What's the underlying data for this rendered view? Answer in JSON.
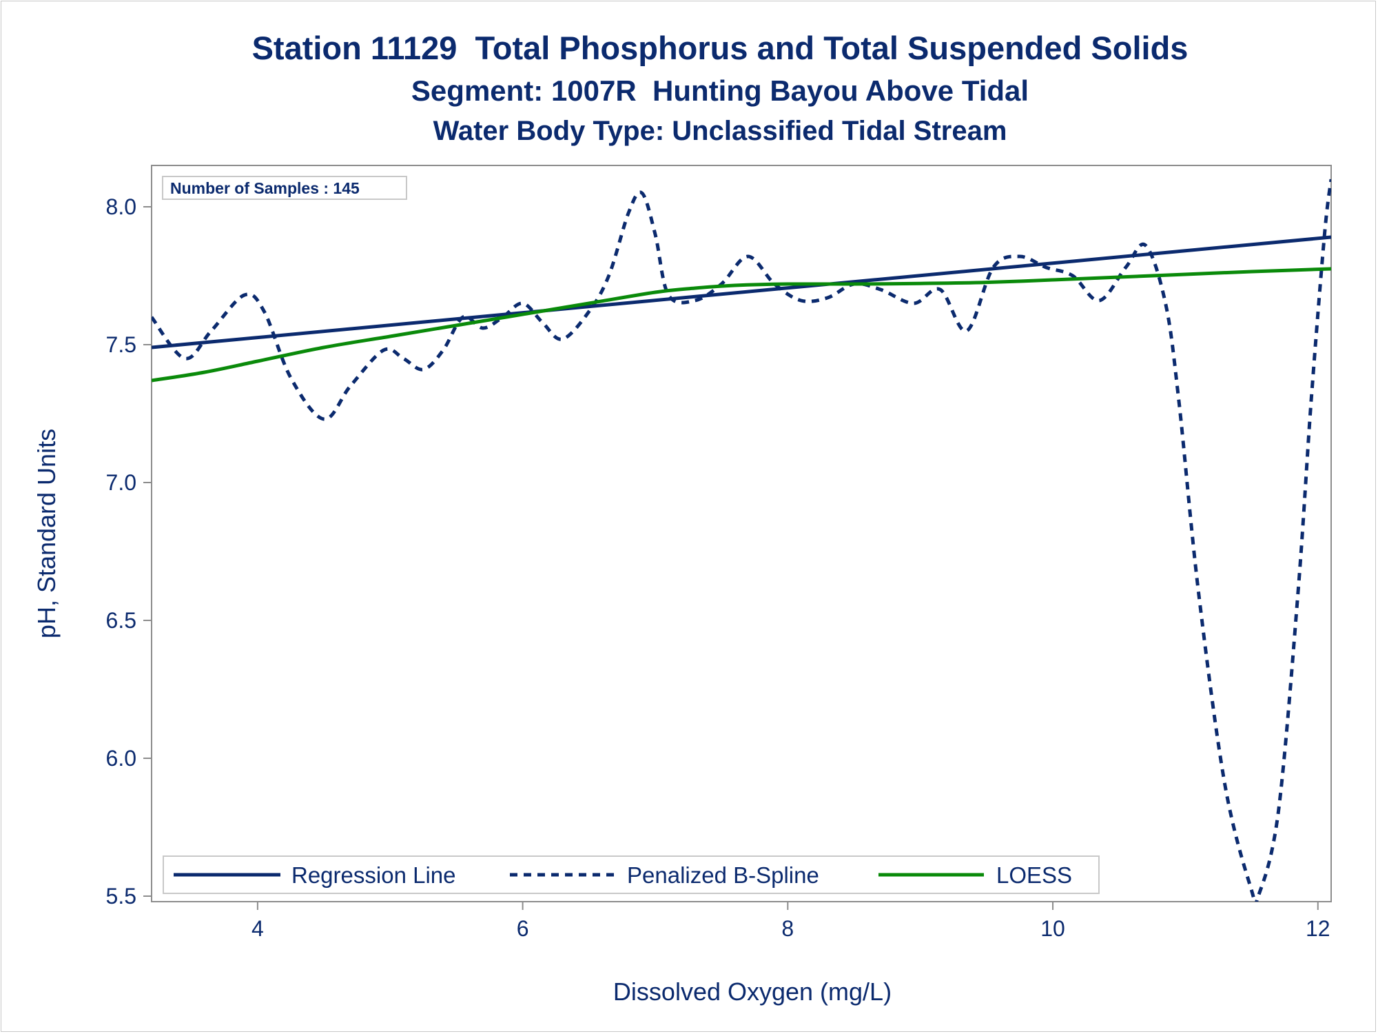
{
  "chart_data": {
    "type": "line",
    "title": "Station 11129  Total Phosphorus and Total Suspended Solids",
    "subtitle": "Segment: 1007R  Hunting Bayou Above Tidal",
    "subtitle2": "Water Body Type: Unclassified Tidal Stream",
    "xlabel": "Dissolved Oxygen (mg/L)",
    "ylabel": "pH, Standard Units",
    "xlim": [
      3.2,
      12.1
    ],
    "ylim": [
      5.48,
      8.15
    ],
    "x_ticks": [
      "4",
      "6",
      "8",
      "10",
      "12"
    ],
    "y_ticks": [
      "5.5",
      "6.0",
      "6.5",
      "7.0",
      "7.5",
      "8.0"
    ],
    "grid": false,
    "legend_position": "bottom-left-inside",
    "inset_label": "Number of Samples : 145",
    "series": [
      {
        "name": "Regression Line",
        "style": "solid",
        "color": "#0b2a6e",
        "x": [
          3.2,
          12.1
        ],
        "y": [
          7.49,
          7.89
        ]
      },
      {
        "name": "Penalized B-Spline",
        "style": "dashed",
        "color": "#0b2a6e",
        "x": [
          3.2,
          3.45,
          3.65,
          3.9,
          4.05,
          4.25,
          4.5,
          4.7,
          4.95,
          5.1,
          5.25,
          5.4,
          5.55,
          5.7,
          5.85,
          6.0,
          6.15,
          6.3,
          6.5,
          6.65,
          6.8,
          6.9,
          7.0,
          7.1,
          7.3,
          7.5,
          7.7,
          7.9,
          8.1,
          8.3,
          8.5,
          8.7,
          8.95,
          9.15,
          9.35,
          9.55,
          9.75,
          9.95,
          10.15,
          10.35,
          10.55,
          10.7,
          10.85,
          10.95,
          11.1,
          11.3,
          11.5,
          11.55,
          11.7,
          11.85,
          11.95,
          12.05,
          12.1
        ],
        "y": [
          7.6,
          7.45,
          7.55,
          7.68,
          7.62,
          7.38,
          7.23,
          7.35,
          7.48,
          7.45,
          7.41,
          7.48,
          7.6,
          7.56,
          7.6,
          7.65,
          7.58,
          7.52,
          7.62,
          7.75,
          7.98,
          8.05,
          7.9,
          7.68,
          7.66,
          7.72,
          7.82,
          7.72,
          7.66,
          7.67,
          7.72,
          7.7,
          7.65,
          7.7,
          7.55,
          7.78,
          7.82,
          7.78,
          7.75,
          7.66,
          7.78,
          7.86,
          7.65,
          7.3,
          6.6,
          5.9,
          5.52,
          5.5,
          5.8,
          6.6,
          7.3,
          7.9,
          8.1
        ]
      },
      {
        "name": "LOESS",
        "style": "solid",
        "color": "#0a8a0a",
        "x": [
          3.2,
          3.6,
          4.0,
          4.5,
          5.0,
          5.5,
          6.0,
          6.5,
          7.0,
          7.3,
          7.6,
          8.0,
          8.5,
          9.0,
          9.5,
          10.0,
          10.5,
          11.0,
          11.5,
          12.1
        ],
        "y": [
          7.37,
          7.4,
          7.44,
          7.49,
          7.53,
          7.57,
          7.61,
          7.65,
          7.69,
          7.705,
          7.715,
          7.72,
          7.72,
          7.722,
          7.726,
          7.735,
          7.745,
          7.755,
          7.765,
          7.775
        ]
      }
    ]
  }
}
